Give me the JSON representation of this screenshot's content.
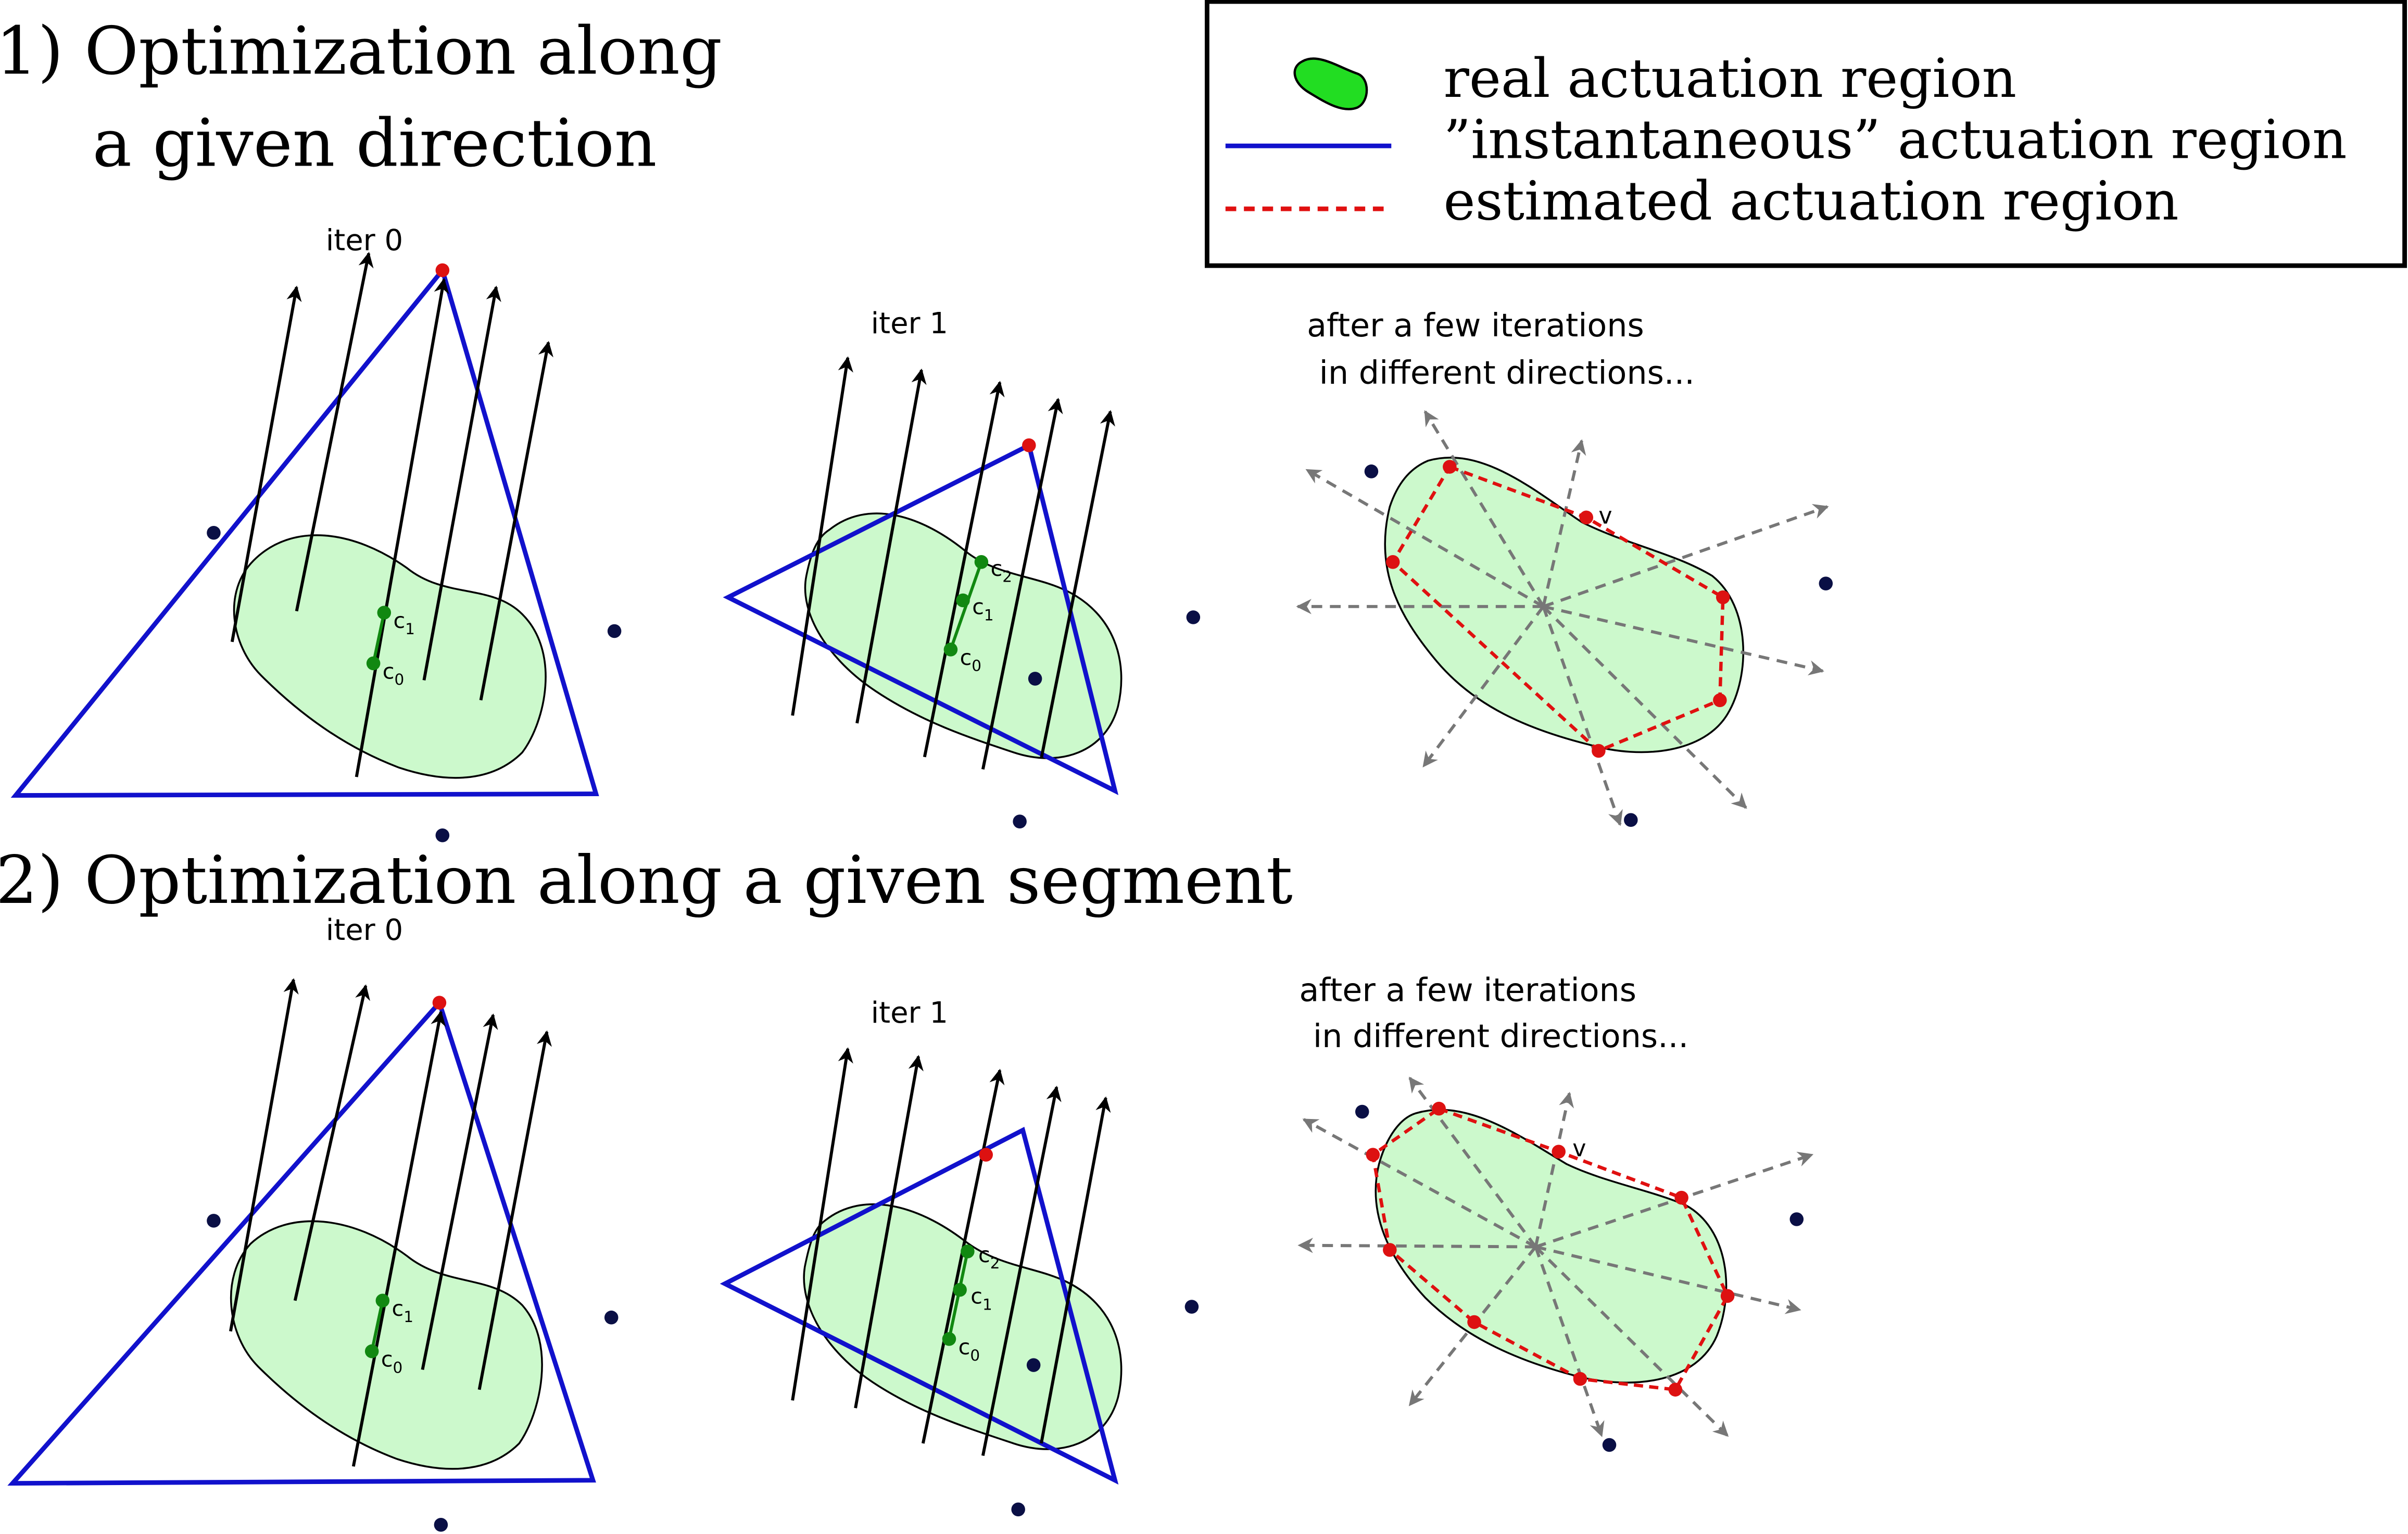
{
  "titles": {
    "section1_line1": "1) Optimization along",
    "section1_line2": "a given direction",
    "section2": "2) Optimization along a given segment"
  },
  "legend": {
    "real": "real actuation region",
    "instantaneous": "”instantaneous” actuation region",
    "estimated": "estimated actuation region"
  },
  "labels": {
    "iter0": "iter 0",
    "iter1": "iter 1",
    "after_line1": "after a few iterations",
    "after_line2": "in different directions...",
    "c0": "c",
    "c1": "c",
    "c2": "c",
    "sub0": "0",
    "sub1": "1",
    "sub2": "2",
    "v": "v"
  },
  "colors": {
    "region_fill": "#ccf9cc",
    "legend_blob": "#22dd22",
    "triangle": "#1111cc",
    "estimated": "#e01010",
    "center_point": "#118811",
    "vertex": "#dd1111",
    "dark_point": "#0a0f45",
    "arrow": "#000000",
    "ray": "#777777"
  }
}
